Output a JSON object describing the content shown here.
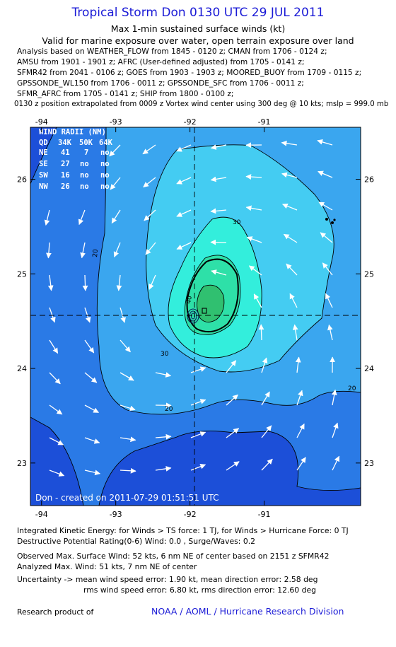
{
  "header": {
    "title": "Tropical Storm Don 0130 UTC 29 JUL 2011",
    "subtitle": "Max 1-min sustained surface winds (kt)",
    "validity": "Valid for marine exposure over water, open terrain exposure over land",
    "sources": [
      "Analysis based on WEATHER_FLOW from 1845 - 0120 z; CMAN from 1706 - 0124 z;",
      "AMSU from 1901 - 1901 z; AFRC (User-defined adjusted) from 1705 - 0141 z;",
      "SFMR42 from 2041 - 0106 z; GOES from 1903 - 1903 z; MOORED_BUOY from 1709 - 0115 z;",
      "GPSSONDE_WL150 from 1706 - 0011 z; GPSSONDE_SFC from 1706 - 0011 z;",
      "SFMR_AFRC from 1705 - 0141 z; SHIP from 1800 - 0100 z;"
    ],
    "position_note": "0130 z position extrapolated from 0009 z Vortex wind center using 300 deg @ 10 kts; mslp = 999.0 mb"
  },
  "chart_data": {
    "type": "contour",
    "xlim": [
      -94.15,
      -89.7
    ],
    "ylim": [
      22.55,
      26.55
    ],
    "x_ticks": [
      -94,
      -93,
      -92,
      -91
    ],
    "y_ticks": [
      23,
      24,
      25,
      26
    ],
    "center": {
      "lon": -92.08,
      "lat": 24.53
    },
    "contour_levels": [
      20,
      30,
      40
    ],
    "contour_labels": [
      "20",
      "20",
      "20",
      "30",
      "30",
      "40"
    ],
    "grid": false,
    "wind_radii": {
      "title": "WIND RADII (NM)",
      "header": [
        "QD",
        "34K",
        "50K",
        "64K"
      ],
      "rows": [
        [
          "NE",
          "41",
          "7",
          "no"
        ],
        [
          "SE",
          "27",
          "no",
          "no"
        ],
        [
          "SW",
          "16",
          "no",
          "no"
        ],
        [
          "NW",
          "26",
          "no",
          "no"
        ]
      ]
    },
    "created_label": "Don - created on 2011-07-29 01:51:51 UTC",
    "colors": {
      "deep": "#1c4fd8",
      "band1": "#2a7ae6",
      "band2": "#3aa6ef",
      "band3": "#44ccf2",
      "band4": "#33eedc",
      "band5": "#2ee0a8",
      "band6": "#30c070",
      "frame": "#000000"
    }
  },
  "footer": {
    "ike": "Integrated Kinetic Energy:  for Winds > TS force: 1 TJ,  for Winds > Hurricane Force: 0 TJ",
    "dpr": "Destructive Potential Rating(0-6)   Wind: 0.0 , Surge/Waves: 0.2",
    "observed": "Observed Max. Surface Wind: 52 kts, 6 nm NE of center based on 2151 z SFMR42",
    "analyzed": "Analyzed Max. Wind: 51 kts, 7 nm NE of center",
    "uncertainty1": "Uncertainty -> mean wind speed error: 1.90 kt,   mean direction error: 2.58 deg",
    "uncertainty2": "rms wind speed error: 6.80 kt,   rms direction error: 12.60 deg",
    "research": "Research product of",
    "org": "NOAA / AOML / Hurricane Research Division"
  }
}
